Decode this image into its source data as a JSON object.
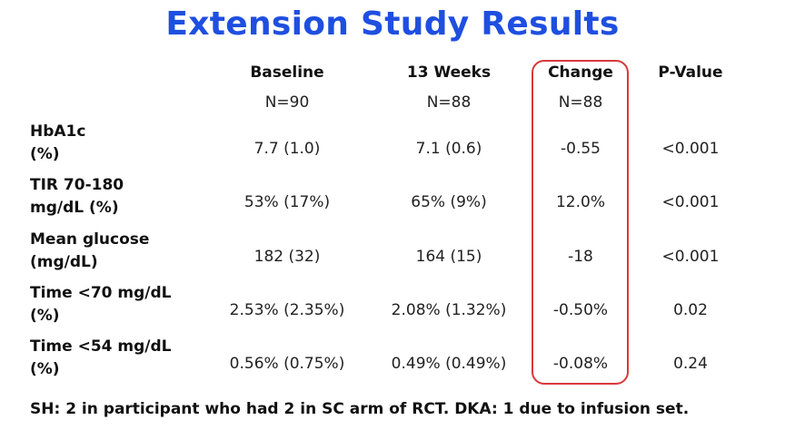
{
  "title": "Extension Study Results",
  "columns": [
    {
      "label": "Baseline",
      "n": "N=90"
    },
    {
      "label": "13 Weeks",
      "n": "N=88"
    },
    {
      "label": "Change",
      "n": "N=88"
    },
    {
      "label": "P-Value",
      "n": ""
    }
  ],
  "rows": [
    {
      "label_line1": "HbA1c",
      "label_line2": "(%)",
      "baseline": "7.7 (1.0)",
      "week13": "7.1 (0.6)",
      "change": "-0.55",
      "pvalue": "<0.001"
    },
    {
      "label_line1": "TIR 70-180",
      "label_line2": "mg/dL (%)",
      "baseline": "53% (17%)",
      "week13": "65% (9%)",
      "change": "12.0%",
      "pvalue": "<0.001"
    },
    {
      "label_line1": "Mean glucose",
      "label_line2": "(mg/dL)",
      "baseline": "182 (32)",
      "week13": "164 (15)",
      "change": "-18",
      "pvalue": "<0.001"
    },
    {
      "label_line1": "Time <70 mg/dL",
      "label_line2": "(%)",
      "baseline": "2.53% (2.35%)",
      "week13": "2.08% (1.32%)",
      "change": "-0.50%",
      "pvalue": "0.02"
    },
    {
      "label_line1": "Time <54 mg/dL",
      "label_line2": "(%)",
      "baseline": "0.56% (0.75%)",
      "week13": "0.49% (0.49%)",
      "change": "-0.08%",
      "pvalue": "0.24"
    }
  ],
  "footnote": "SH: 2 in participant who had 2 in SC arm of RCT. DKA: 1 due to infusion set.",
  "colors": {
    "title": "#1f4fe0",
    "highlight_border": "#d9383a"
  }
}
